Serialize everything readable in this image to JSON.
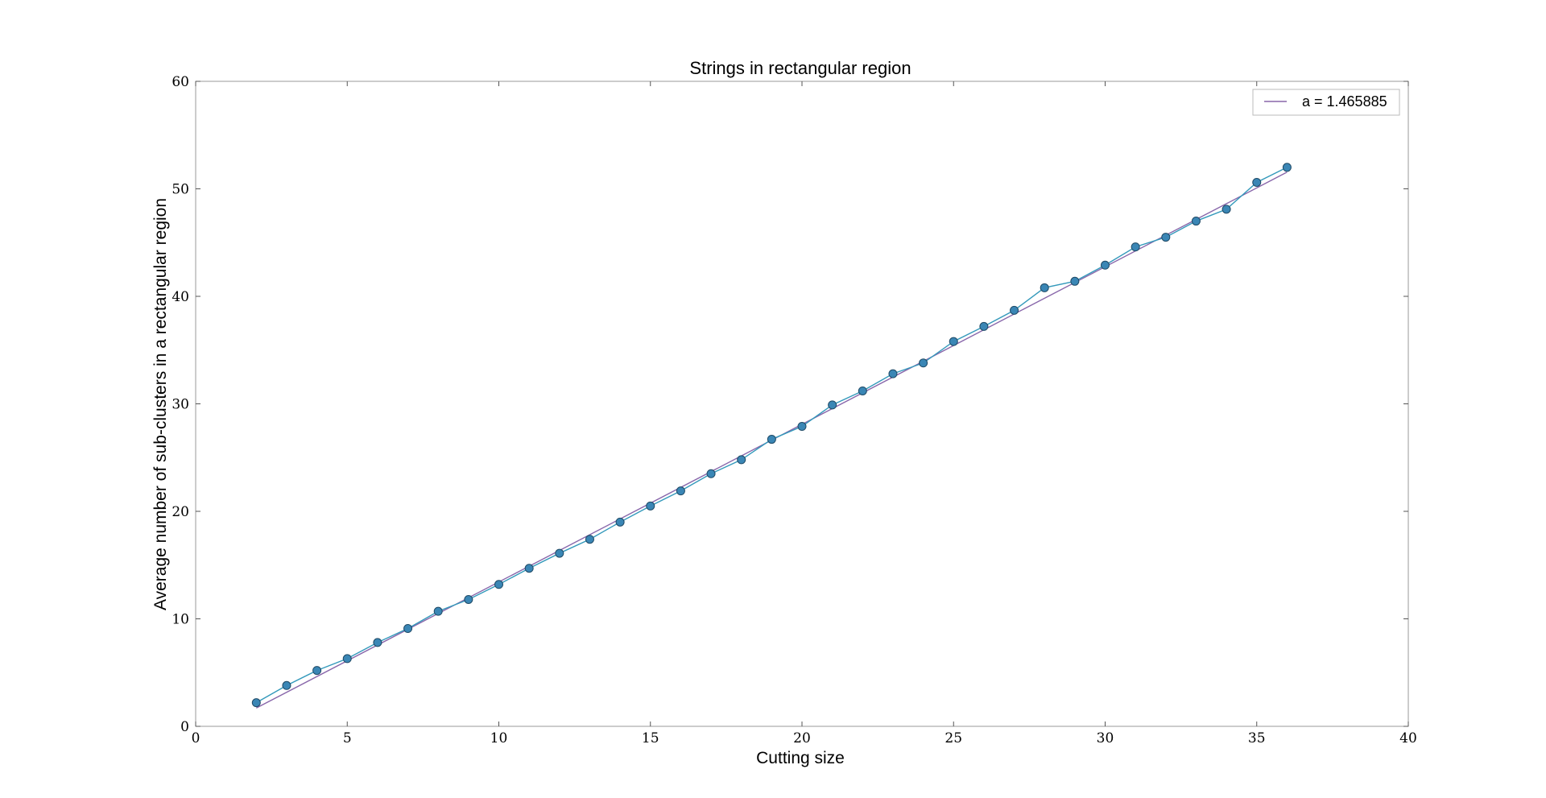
{
  "chart_data": {
    "type": "line",
    "title": "Strings in rectangular region",
    "xlabel": "Cutting size",
    "ylabel": "Average number of sub-clusters in a rectangular region",
    "xlim": [
      0,
      40
    ],
    "ylim": [
      0,
      60
    ],
    "xticks": [
      0,
      5,
      10,
      15,
      20,
      25,
      30,
      35,
      40
    ],
    "yticks": [
      0,
      10,
      20,
      30,
      40,
      50,
      60
    ],
    "grid": false,
    "legend_position": "top-right",
    "series": [
      {
        "kind": "line-markers",
        "color": "#3399bb",
        "marker_color": "#3a86b5",
        "x": [
          2,
          3,
          4,
          5,
          6,
          7,
          8,
          9,
          10,
          11,
          12,
          13,
          14,
          15,
          16,
          17,
          18,
          19,
          20,
          21,
          22,
          23,
          24,
          25,
          26,
          27,
          28,
          29,
          30,
          31,
          32,
          33,
          34,
          35,
          36
        ],
        "y": [
          2.2,
          3.8,
          5.2,
          6.3,
          7.8,
          9.1,
          10.7,
          11.8,
          13.2,
          14.7,
          16.1,
          17.4,
          19.0,
          20.5,
          21.9,
          23.5,
          24.8,
          26.7,
          27.9,
          29.9,
          31.2,
          32.8,
          33.8,
          35.8,
          37.2,
          38.7,
          40.8,
          41.4,
          42.9,
          44.6,
          45.5,
          47.0,
          48.1,
          50.6,
          52.0
        ]
      },
      {
        "kind": "line",
        "name": "a = 1.465885",
        "color": "#8866aa",
        "x": [
          2,
          36
        ],
        "y": [
          1.7,
          51.55
        ]
      }
    ]
  }
}
